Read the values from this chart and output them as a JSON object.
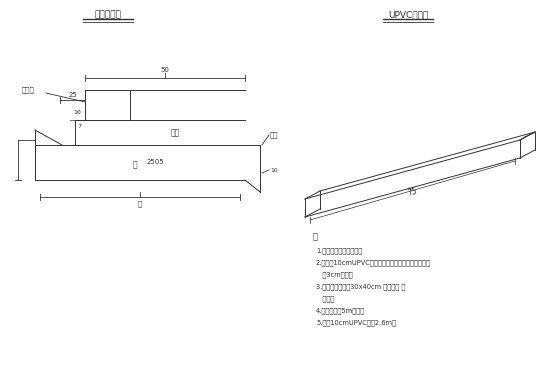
{
  "bg_color": "#ffffff",
  "line_color": "#333333",
  "title_left": "排水槽详图",
  "title_right": "UPVC排水管",
  "notes_title": "注",
  "notes": [
    "1.横坡坡度按设计坡度。",
    "2.路缘石10cmUPVC管，管底标高，应比桥面铺装顶面",
    "   低3cm即可。",
    "3.路缘石内侧砖砌30x40cm 横向排水 检",
    "   查孔。",
    "4.检查孔间距5m布置。",
    "5.每根10cmUPVC管长2.6m。"
  ],
  "label_路缘石": "路缘石",
  "label_铺装": "铺装",
  "label_桥墩": "桥墩",
  "label_梁": "梁",
  "label_2505": "2505"
}
